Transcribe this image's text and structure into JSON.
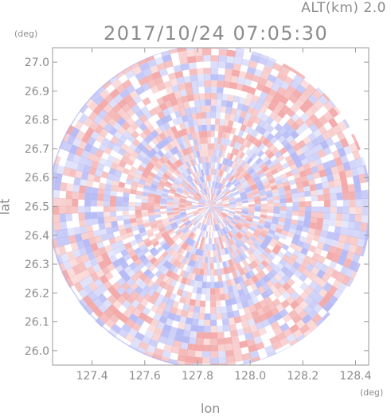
{
  "header": {
    "altitude_label": "ALT(km)  2.0",
    "timestamp": "2017/10/24 07:05:30"
  },
  "axes": {
    "x": {
      "title": "lon",
      "unit": "(deg)",
      "ticks": [
        "127.4",
        "127.6",
        "127.8",
        "128.0",
        "128.2",
        "128.4"
      ],
      "range": [
        127.25,
        128.45
      ]
    },
    "y": {
      "title": "lat",
      "unit": "(deg)",
      "ticks": [
        "26.0",
        "26.1",
        "26.2",
        "26.3",
        "26.4",
        "26.5",
        "26.6",
        "26.7",
        "26.8",
        "26.9",
        "27.0"
      ],
      "range": [
        25.95,
        27.05
      ]
    }
  },
  "radar": {
    "center_lon": 127.85,
    "center_lat": 26.5,
    "colors": {
      "positive": "#f2a6a6",
      "negative": "#b4b8f4",
      "neutral": "#ffffff"
    }
  }
}
